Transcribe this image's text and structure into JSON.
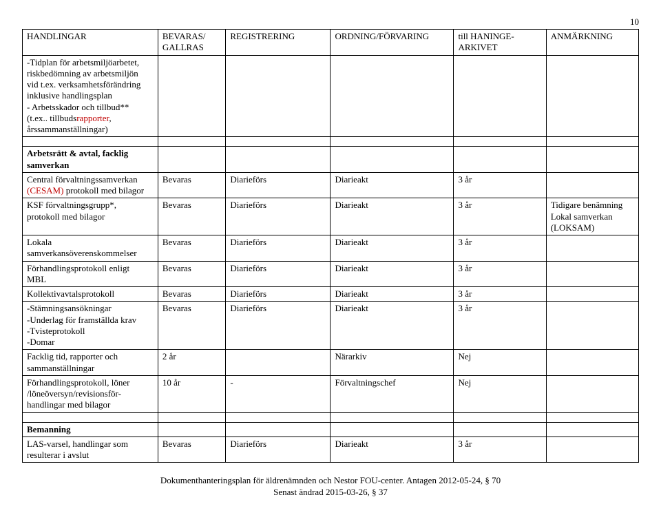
{
  "pageNumber": "10",
  "headers": [
    "HANDLINGAR",
    "BEVARAS/\nGALLRAS",
    "REGISTRERING",
    "ORDNING/FÖRVARING",
    "till HANINGE-\nARKIVET",
    "ANMÄRKNING"
  ],
  "introRows": [
    {
      "c1_lines": [
        "-Tidplan för arbetsmiljöarbetet,",
        "riskbedömning av arbetsmiljön",
        "vid t.ex. verksamhetsförändring",
        "inklusive handlingsplan",
        "- Arbetsskador och tillbud**",
        {
          "text": "(t.ex.. tillbudsrapporter,",
          "parts": [
            {
              "t": "(t.ex.. tillbuds"
            },
            {
              "t": "rapporter",
              "red": true
            },
            {
              "t": ","
            }
          ]
        },
        "årssammanställningar)"
      ]
    }
  ],
  "section1": {
    "title": "Arbetsrätt & avtal, facklig samverkan",
    "rows": [
      {
        "c1": [
          {
            "t": "Central förvaltningssamverkan"
          },
          {
            "t": "(CESAM)",
            "red": true
          },
          {
            "t": " protokoll med bilagor",
            "sameLine": true
          }
        ],
        "c2": "Bevaras",
        "c3": "Diarieförs",
        "c4": "Diarieakt",
        "c5": "3 år",
        "c6": ""
      },
      {
        "c1": [
          {
            "t": "KSF förvaltningsgrupp*,"
          },
          {
            "t": "protokoll med bilagor"
          }
        ],
        "c2": "Bevaras",
        "c3": "Diarieförs",
        "c4": "Diarieakt",
        "c5": "3 år",
        "c6": "Tidigare benämning Lokal samverkan (LOKSAM)"
      },
      {
        "c1": [
          {
            "t": "Lokala"
          },
          {
            "t": "samverkansöverenskommelser"
          }
        ],
        "c2": "Bevaras",
        "c3": "Diarieförs",
        "c4": "Diarieakt",
        "c5": "3 år",
        "c6": ""
      },
      {
        "c1": [
          {
            "t": "Förhandlingsprotokoll enligt"
          },
          {
            "t": "MBL"
          }
        ],
        "c2": "Bevaras",
        "c3": "Diarieförs",
        "c4": "Diarieakt",
        "c5": "3 år",
        "c6": ""
      },
      {
        "c1": [
          {
            "t": "Kollektivavtalsprotokoll"
          }
        ],
        "c2": "Bevaras",
        "c3": "Diarieförs",
        "c4": "Diarieakt",
        "c5": "3 år",
        "c6": ""
      },
      {
        "c1": [
          {
            "t": "-Stämningsansökningar"
          },
          {
            "t": "-Underlag för framställda krav"
          },
          {
            "t": "-Tvisteprotokoll"
          },
          {
            "t": "-Domar"
          }
        ],
        "c2": "Bevaras",
        "c3": "Diarieförs",
        "c4": "Diarieakt",
        "c5": "3 år",
        "c6": ""
      },
      {
        "c1": [
          {
            "t": "Facklig tid, rapporter och"
          },
          {
            "t": "sammanställningar"
          }
        ],
        "c2": "2 år",
        "c3": "",
        "c4": "Närarkiv",
        "c5": "Nej",
        "c6": ""
      },
      {
        "c1": [
          {
            "t": "Förhandlingsprotokoll, löner"
          },
          {
            "t": "/löneöversyn/revisionsför-"
          },
          {
            "t": "handlingar med bilagor"
          }
        ],
        "c2": "10 år",
        "c3": "-",
        "c4": "Förvaltningschef",
        "c5": "Nej",
        "c6": ""
      }
    ]
  },
  "section2": {
    "title": "Bemanning",
    "rows": [
      {
        "c1": [
          {
            "t": "LAS-varsel, handlingar som"
          },
          {
            "t": "resulterar i avslut"
          }
        ],
        "c2": "Bevaras",
        "c3": "Diarieförs",
        "c4": "Diarieakt",
        "c5": "3 år",
        "c6": ""
      }
    ]
  },
  "footer": {
    "line1": "Dokumenthanteringsplan för äldrenämnden och Nestor FOU-center. Antagen 2012-05-24, § 70",
    "line2": "Senast ändrad 2015-03-26, § 37"
  }
}
